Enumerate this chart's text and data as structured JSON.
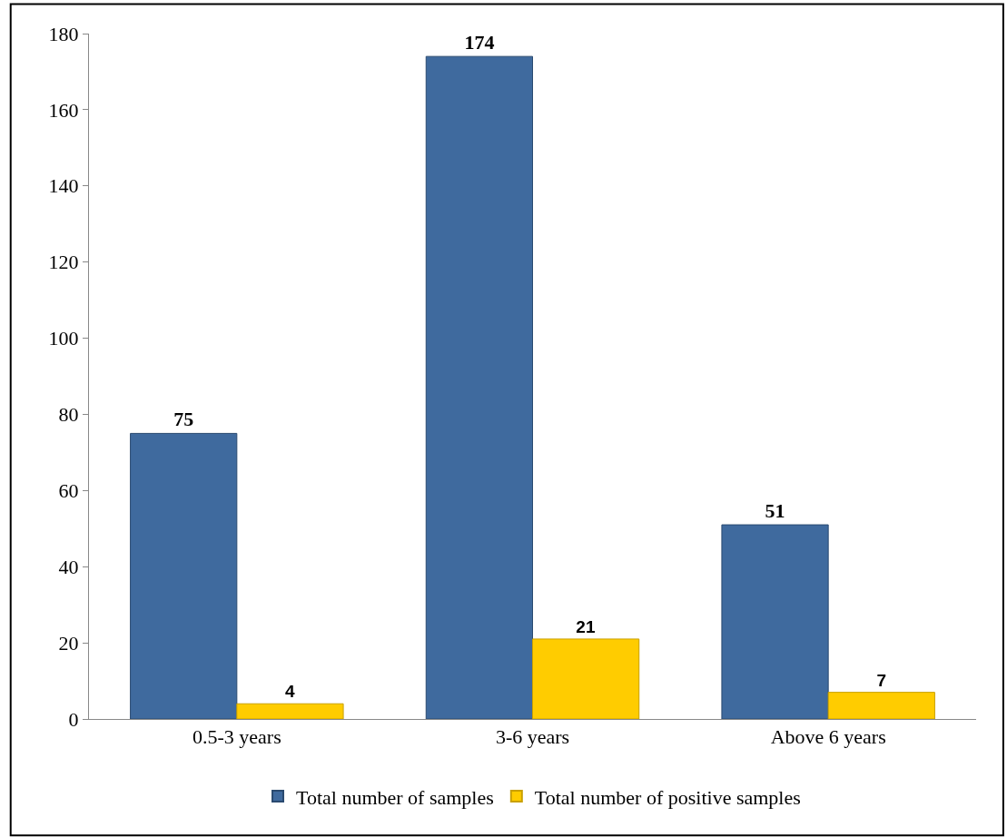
{
  "chart_data": {
    "type": "bar",
    "categories": [
      "0.5-3 years",
      "3-6 years",
      "Above 6 years"
    ],
    "series": [
      {
        "name": "Total number of samples",
        "color": "#3f6a9e",
        "values": [
          75,
          174,
          51
        ]
      },
      {
        "name": "Total number of positive samples",
        "color": "#ffcc00",
        "values": [
          4,
          21,
          7
        ]
      }
    ],
    "ylim": [
      0,
      180
    ],
    "yticks": [
      0,
      20,
      40,
      60,
      80,
      100,
      120,
      140,
      160,
      180
    ],
    "data_labels": true,
    "legend": "bottom"
  }
}
